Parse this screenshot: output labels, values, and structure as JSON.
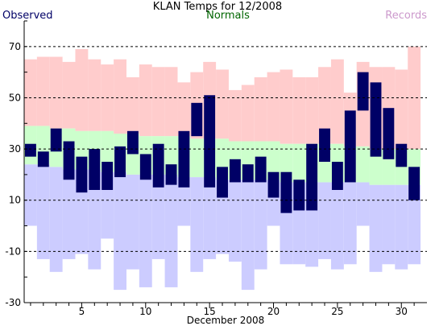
{
  "chart_data": {
    "type": "bar",
    "title": "KLAN Temps for 12/2008",
    "legend": {
      "observed": "Observed",
      "normals": "Normals",
      "records": "Records",
      "placement": "top"
    },
    "xlabel": "December 2008",
    "x_ticks": [
      "5",
      "10",
      "15",
      "20",
      "25",
      "30"
    ],
    "ylabel": "",
    "ylim": [
      -30,
      80
    ],
    "y_ticks": [
      "-30",
      "-10",
      "10",
      "30",
      "50",
      "70"
    ],
    "days": [
      1,
      2,
      3,
      4,
      5,
      6,
      7,
      8,
      9,
      10,
      11,
      12,
      13,
      14,
      15,
      16,
      17,
      18,
      19,
      20,
      21,
      22,
      23,
      24,
      25,
      26,
      27,
      28,
      29,
      30,
      31
    ],
    "series": [
      {
        "name": "Records",
        "record_high": [
          65,
          66,
          66,
          64,
          69,
          65,
          63,
          65,
          58,
          63,
          62,
          62,
          56,
          60,
          64,
          61,
          53,
          55,
          58,
          60,
          61,
          58,
          58,
          62,
          65,
          52,
          64,
          62,
          62,
          61,
          70
        ],
        "record_low": [
          0,
          -13,
          -18,
          -13,
          -11,
          -17,
          -5,
          -25,
          -17,
          -24,
          -13,
          -24,
          0,
          -18,
          -13,
          -11,
          -14,
          -25,
          -17,
          0,
          -15,
          -15,
          -16,
          -13,
          -17,
          -15,
          0,
          -18,
          -15,
          -17,
          -15
        ]
      },
      {
        "name": "Normals",
        "normal_high": [
          39,
          39,
          38,
          38,
          37,
          37,
          37,
          36,
          36,
          35,
          35,
          35,
          35,
          34,
          34,
          34,
          33,
          33,
          33,
          33,
          32,
          32,
          32,
          32,
          32,
          31,
          31,
          30,
          30,
          30,
          30
        ],
        "normal_low": [
          24,
          24,
          23,
          22,
          22,
          22,
          21,
          21,
          20,
          20,
          20,
          20,
          19,
          19,
          19,
          18,
          18,
          18,
          18,
          18,
          17,
          17,
          17,
          17,
          17,
          17,
          17,
          16,
          16,
          16,
          16
        ]
      },
      {
        "name": "Observed",
        "high": [
          32,
          29,
          38,
          33,
          27,
          30,
          25,
          31,
          37,
          28,
          32,
          24,
          37,
          48,
          51,
          23,
          26,
          24,
          27,
          21,
          21,
          18,
          32,
          38,
          25,
          45,
          60,
          56,
          46,
          32,
          23
        ],
        "low": [
          27,
          23,
          29,
          18,
          13,
          14,
          14,
          19,
          28,
          18,
          15,
          16,
          15,
          35,
          15,
          11,
          17,
          17,
          17,
          11,
          5,
          6,
          6,
          25,
          14,
          17,
          45,
          27,
          26,
          23,
          10
        ]
      }
    ],
    "colors": {
      "records": "#ffcccc",
      "normals": "#ccffcc",
      "lows_band": "#ccccff",
      "observed": "#000066",
      "legend_observed": "#000066",
      "legend_normals": "#006600",
      "legend_records": "#cc99cc",
      "gridline": "#000000"
    },
    "grid": true
  }
}
